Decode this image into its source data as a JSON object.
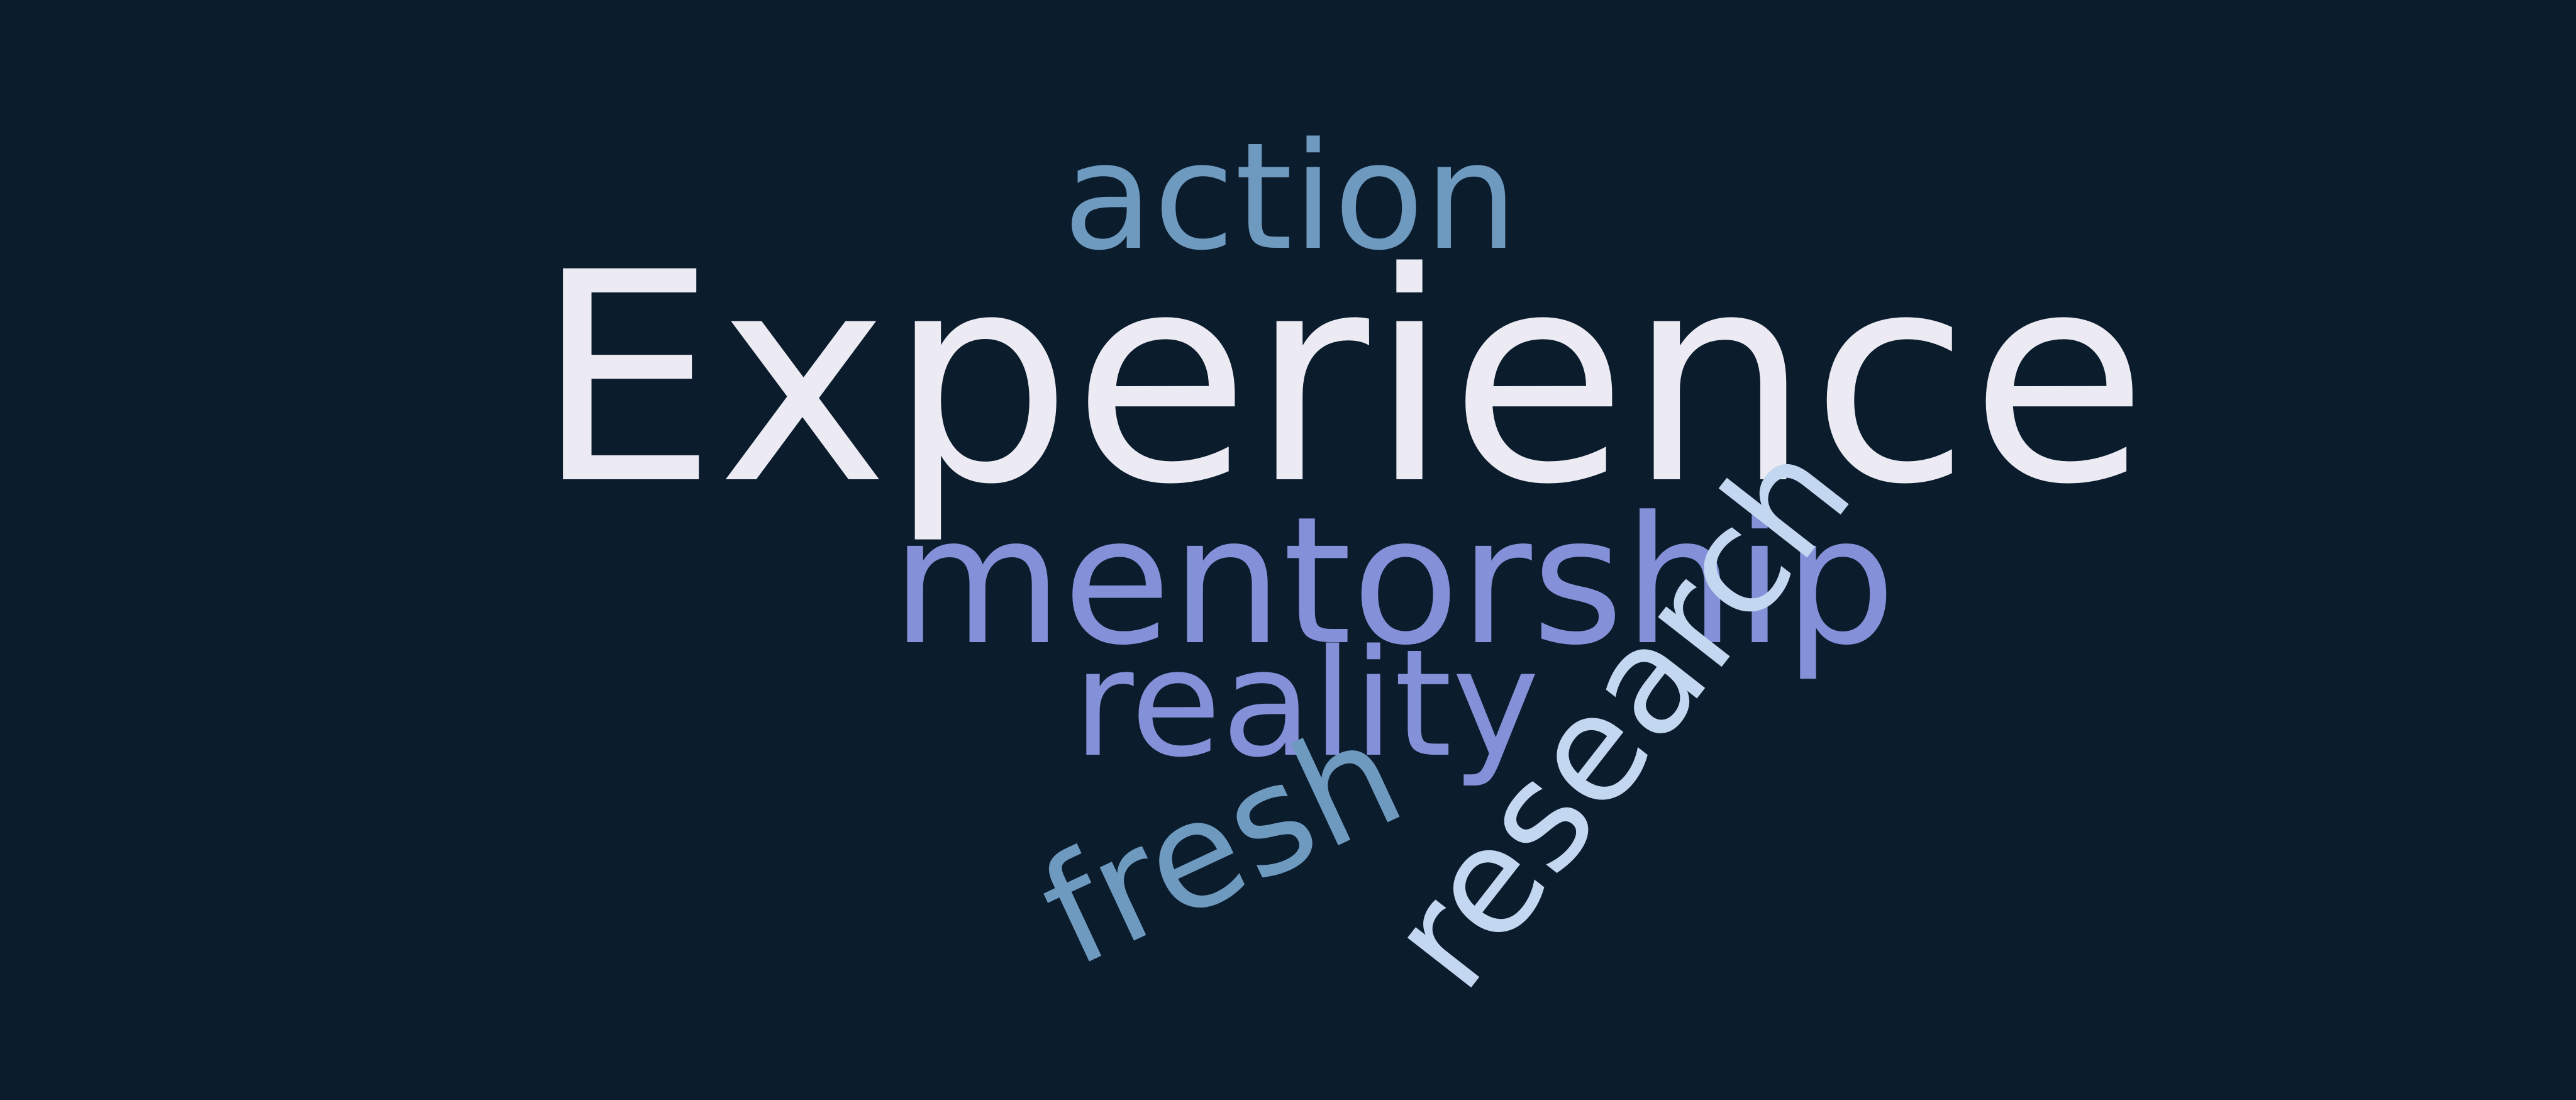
{
  "word_cloud": {
    "background": "#0b1c2d",
    "words": [
      {
        "id": "experience",
        "text": "Experience",
        "color": "#ecebf3"
      },
      {
        "id": "action",
        "text": "action",
        "color": "#6f9ac0"
      },
      {
        "id": "mentorship",
        "text": "mentorship",
        "color": "#8490d8"
      },
      {
        "id": "reality",
        "text": "reality",
        "color": "#8490d8"
      },
      {
        "id": "fresh",
        "text": "fresh",
        "color": "#6f9ac0"
      },
      {
        "id": "research",
        "text": "research",
        "color": "#c3d7f0"
      }
    ]
  }
}
